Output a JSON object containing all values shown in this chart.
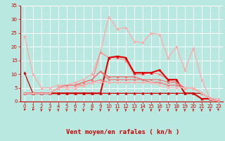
{
  "bg_color": "#b8e8e0",
  "grid_color": "#ffffff",
  "text_color": "#cc0000",
  "xlabel": "Vent moyen/en rafales ( kn/h )",
  "xlim": [
    -0.5,
    23.5
  ],
  "ylim": [
    0,
    35
  ],
  "yticks": [
    0,
    5,
    10,
    15,
    20,
    25,
    30,
    35
  ],
  "xticks": [
    0,
    1,
    2,
    3,
    4,
    5,
    6,
    7,
    8,
    9,
    10,
    11,
    12,
    13,
    14,
    15,
    16,
    17,
    18,
    19,
    20,
    21,
    22,
    23
  ],
  "series": [
    {
      "x": [
        0,
        1,
        2,
        3,
        4,
        5,
        6,
        7,
        8,
        9,
        10,
        11,
        12,
        13,
        14,
        15,
        16,
        17,
        18,
        19,
        20,
        21,
        22,
        23
      ],
      "y": [
        24,
        10,
        5,
        5,
        6,
        6,
        7,
        8,
        10,
        18,
        31,
        26.5,
        27,
        22,
        21.5,
        25,
        24.5,
        16,
        20,
        11.5,
        19.5,
        8,
        1,
        1
      ],
      "color": "#ffaaaa",
      "lw": 0.9,
      "marker": "^",
      "ms": 2.5
    },
    {
      "x": [
        0,
        1,
        2,
        3,
        4,
        5,
        6,
        7,
        8,
        9,
        10,
        11,
        12,
        13,
        14,
        15,
        16,
        17,
        18,
        19,
        20,
        21,
        22,
        23
      ],
      "y": [
        3,
        3,
        3,
        3,
        5,
        5,
        5,
        6,
        7,
        18,
        16,
        16,
        15,
        10,
        10,
        10.5,
        10,
        8,
        7,
        5,
        5,
        3,
        1,
        0
      ],
      "color": "#ff8888",
      "lw": 0.9,
      "marker": "^",
      "ms": 2.5
    },
    {
      "x": [
        0,
        1,
        2,
        3,
        4,
        5,
        6,
        7,
        8,
        9,
        10,
        11,
        12,
        13,
        14,
        15,
        16,
        17,
        18,
        19,
        20,
        21,
        22,
        23
      ],
      "y": [
        3,
        3,
        3,
        3,
        3,
        3,
        3,
        3,
        3,
        3,
        16,
        16.5,
        16,
        10.5,
        10.5,
        10.5,
        11.5,
        8,
        8,
        3,
        3,
        1,
        1,
        0
      ],
      "color": "#dd0000",
      "lw": 1.5,
      "marker": "^",
      "ms": 2.5
    },
    {
      "x": [
        0,
        1,
        2,
        3,
        4,
        5,
        6,
        7,
        8,
        9,
        10,
        11,
        12,
        13,
        14,
        15,
        16,
        17,
        18,
        19,
        20,
        21,
        22,
        23
      ],
      "y": [
        10.5,
        3,
        3,
        3,
        3,
        3,
        3,
        3,
        3,
        3,
        3,
        3,
        3,
        3,
        3,
        3,
        3,
        3,
        3,
        3,
        3,
        3,
        1,
        0
      ],
      "color": "#cc0000",
      "lw": 0.9,
      "marker": "^",
      "ms": 2.5
    },
    {
      "x": [
        0,
        1,
        2,
        3,
        4,
        5,
        6,
        7,
        8,
        9,
        10,
        11,
        12,
        13,
        14,
        15,
        16,
        17,
        18,
        19,
        20,
        21,
        22,
        23
      ],
      "y": [
        3,
        3,
        3,
        3,
        5,
        6,
        6,
        7,
        8,
        11,
        9,
        9,
        9,
        9,
        8,
        7,
        7,
        6,
        6,
        5,
        5,
        3,
        1,
        0
      ],
      "color": "#ee6666",
      "lw": 0.9,
      "marker": "^",
      "ms": 2.0
    },
    {
      "x": [
        0,
        1,
        2,
        3,
        4,
        5,
        6,
        7,
        8,
        9,
        10,
        11,
        12,
        13,
        14,
        15,
        16,
        17,
        18,
        19,
        20,
        21,
        22,
        23
      ],
      "y": [
        3,
        3,
        3,
        3,
        5,
        6,
        6,
        7,
        8,
        11,
        8,
        8,
        8,
        8,
        8,
        8,
        8,
        7,
        7,
        5,
        5,
        3,
        1,
        0
      ],
      "color": "#ee7777",
      "lw": 0.9,
      "marker": "^",
      "ms": 2.0
    },
    {
      "x": [
        0,
        1,
        2,
        3,
        4,
        5,
        6,
        7,
        8,
        9,
        10,
        11,
        12,
        13,
        14,
        15,
        16,
        17,
        18,
        19,
        20,
        21,
        22,
        23
      ],
      "y": [
        3,
        3,
        3,
        3,
        5,
        6,
        6,
        6,
        7,
        8,
        7,
        7,
        7,
        7,
        7,
        7,
        7,
        6,
        6,
        5,
        5,
        3,
        1,
        0
      ],
      "color": "#ee8888",
      "lw": 0.9,
      "marker": "^",
      "ms": 2.0
    },
    {
      "x": [
        0,
        1,
        2,
        3,
        4,
        5,
        6,
        7,
        8,
        9,
        10,
        11,
        12,
        13,
        14,
        15,
        16,
        17,
        18,
        19,
        20,
        21,
        22,
        23
      ],
      "y": [
        3,
        3,
        3,
        3,
        5,
        5,
        5,
        6,
        7,
        7,
        7,
        7,
        7,
        7,
        7,
        7,
        6,
        5,
        5,
        5,
        5,
        3,
        1,
        0
      ],
      "color": "#ffbbbb",
      "lw": 0.9,
      "marker": "^",
      "ms": 2.0
    }
  ],
  "tick_fontsize": 5,
  "xlabel_fontsize": 6.5
}
